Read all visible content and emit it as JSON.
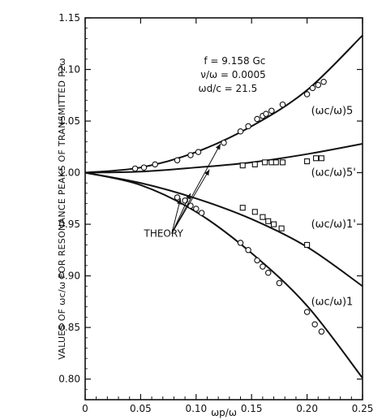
{
  "chart_data": {
    "type": "scatter",
    "xlabel": "ωp/ω",
    "ylabel": "VALUES OF ωc/ω   FOR RESONANCE PEAKS OF TRANSMITTED P2ω",
    "xlim": [
      0,
      0.25
    ],
    "ylim": [
      0.78,
      1.15
    ],
    "x_ticks": [
      "0",
      "0.05",
      "0.10",
      "0.15",
      "0.20",
      "0.25"
    ],
    "y_ticks": [
      "0.80",
      "0.85",
      "0.90",
      "0.95",
      "1.00",
      "1.05",
      "1.10",
      "1.15"
    ],
    "annotations": [
      "f = 9.158 Gc",
      "ν/ω = 0.0005",
      "ωd/c = 21.5"
    ],
    "theory_label": "THEORY",
    "series": [
      {
        "name": "(ωc/ω)5",
        "marker": "circle",
        "theory": {
          "x": [
            0,
            0.05,
            0.1,
            0.15,
            0.2,
            0.25
          ],
          "y": [
            1.0,
            1.005,
            1.02,
            1.045,
            1.08,
            1.133
          ]
        },
        "points": {
          "x": [
            0.045,
            0.053,
            0.063,
            0.083,
            0.095,
            0.102,
            0.125,
            0.14,
            0.147,
            0.155,
            0.16,
            0.163,
            0.168,
            0.178,
            0.2,
            0.205,
            0.21,
            0.215
          ],
          "y": [
            1.004,
            1.005,
            1.008,
            1.012,
            1.017,
            1.02,
            1.029,
            1.04,
            1.045,
            1.052,
            1.055,
            1.057,
            1.06,
            1.066,
            1.076,
            1.082,
            1.085,
            1.088
          ]
        }
      },
      {
        "name": "(ωc/ω)5'",
        "marker": "square",
        "theory": {
          "x": [
            0,
            0.05,
            0.1,
            0.15,
            0.2,
            0.25
          ],
          "y": [
            1.0,
            1.001,
            1.005,
            1.01,
            1.018,
            1.028
          ]
        },
        "points": {
          "x": [
            0.142,
            0.153,
            0.162,
            0.168,
            0.172,
            0.178,
            0.2,
            0.208,
            0.213
          ],
          "y": [
            1.007,
            1.008,
            1.01,
            1.01,
            1.01,
            1.01,
            1.011,
            1.014,
            1.014
          ]
        }
      },
      {
        "name": "(ωc/ω)1'",
        "marker": "square",
        "theory": {
          "x": [
            0,
            0.05,
            0.1,
            0.15,
            0.2,
            0.25
          ],
          "y": [
            1.0,
            0.99,
            0.975,
            0.955,
            0.928,
            0.89
          ]
        },
        "points": {
          "x": [
            0.142,
            0.153,
            0.16,
            0.165,
            0.17,
            0.177,
            0.2
          ],
          "y": [
            0.966,
            0.962,
            0.957,
            0.953,
            0.95,
            0.946,
            0.93
          ]
        }
      },
      {
        "name": "(ωc/ω)1",
        "marker": "circle",
        "theory": {
          "x": [
            0,
            0.05,
            0.1,
            0.15,
            0.2,
            0.25
          ],
          "y": [
            1.0,
            0.988,
            0.962,
            0.922,
            0.871,
            0.801
          ]
        },
        "points": {
          "x": [
            0.083,
            0.09,
            0.095,
            0.1,
            0.105,
            0.14,
            0.147,
            0.155,
            0.16,
            0.165,
            0.175,
            0.2,
            0.207,
            0.213
          ],
          "y": [
            0.976,
            0.973,
            0.968,
            0.965,
            0.961,
            0.932,
            0.925,
            0.915,
            0.909,
            0.903,
            0.893,
            0.865,
            0.853,
            0.846
          ]
        }
      }
    ]
  }
}
